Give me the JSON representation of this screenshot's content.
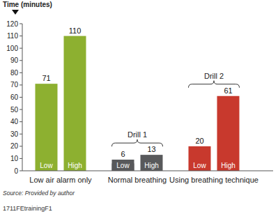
{
  "chart_data": {
    "type": "bar",
    "y_label": "Time (minutes)",
    "categories": [
      "Low air alarm only",
      "Normal breathing",
      "Using breathing technique"
    ],
    "series": [
      {
        "name": "Low",
        "values": [
          71,
          6,
          20
        ],
        "colors": [
          "#8db030",
          "#58595b",
          "#c8392d"
        ]
      },
      {
        "name": "High",
        "values": [
          110,
          13,
          61
        ],
        "colors": [
          "#8db030",
          "#58595b",
          "#c8392d"
        ]
      }
    ],
    "ylim": [
      0,
      120
    ],
    "yticks": [
      0,
      10,
      20,
      30,
      40,
      50,
      60,
      70,
      80,
      90,
      100,
      110,
      120
    ],
    "grid": false,
    "data_labels": true,
    "annotations": [
      {
        "text": "Drill 1",
        "category": "Normal breathing"
      },
      {
        "text": "Drill 2",
        "category": "Using breathing technique"
      }
    ],
    "footnotes": [
      "Source: Provided by author",
      "1711FEtrainingF1"
    ]
  }
}
